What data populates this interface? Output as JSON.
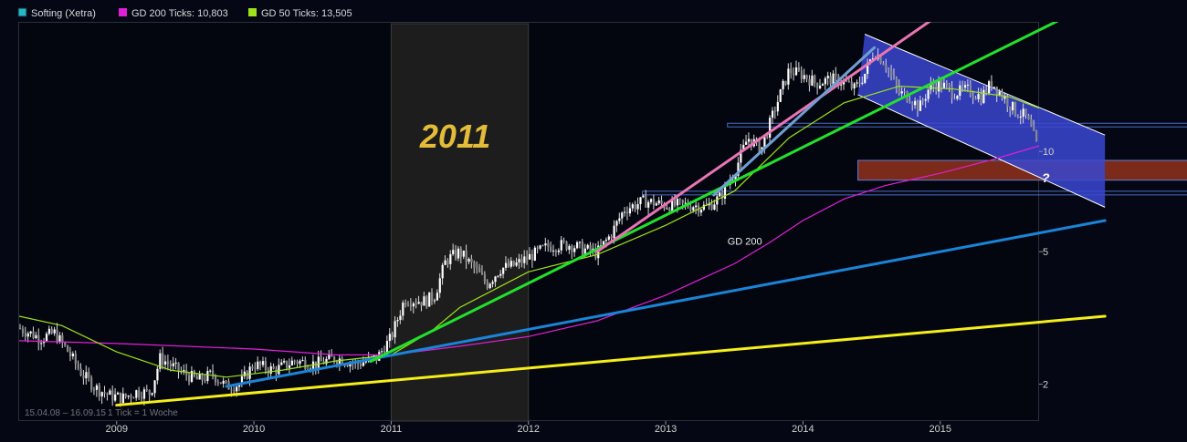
{
  "chart_data": {
    "type": "line",
    "subtype": "candlestick",
    "instrument": "Softing (Xetra)",
    "scale": "log",
    "legend": [
      {
        "name": "Softing (Xetra)",
        "color": "#21b9c6"
      },
      {
        "name": "GD 200 Ticks: 10,803",
        "color": "#e020d8"
      },
      {
        "name": "GD 50 Ticks: 13,505",
        "color": "#9ee21b"
      }
    ],
    "x_ticks": [
      "2009",
      "2010",
      "2011",
      "2012",
      "2013",
      "2014",
      "2015"
    ],
    "y_ticks": [
      {
        "value": 2,
        "label": "2"
      },
      {
        "value": 5,
        "label": "5"
      },
      {
        "value": 10,
        "label": "10"
      }
    ],
    "xlim": [
      2008.29,
      2015.72
    ],
    "ylim": [
      1.55,
      24.5
    ],
    "highlight_period": {
      "from": 2011.0,
      "to": 2012.0,
      "label": "2011"
    },
    "annotations": [
      {
        "text": "GD 200",
        "x": 2013.45,
        "y": 5.25
      },
      {
        "text": "?",
        "x": 2015.72,
        "y": 8.6
      }
    ],
    "footer": {
      "range": "15.04.08 – 16.09.15",
      "unit": "1 Tick = 1 Woche"
    },
    "price_path": [
      [
        2008.29,
        2.95
      ],
      [
        2008.45,
        2.75
      ],
      [
        2008.55,
        2.85
      ],
      [
        2008.65,
        2.5
      ],
      [
        2008.75,
        2.15
      ],
      [
        2008.85,
        1.95
      ],
      [
        2008.95,
        1.85
      ],
      [
        2009.05,
        1.82
      ],
      [
        2009.15,
        1.9
      ],
      [
        2009.25,
        1.88
      ],
      [
        2009.32,
        2.4
      ],
      [
        2009.45,
        2.2
      ],
      [
        2009.6,
        2.05
      ],
      [
        2009.7,
        2.15
      ],
      [
        2009.8,
        1.97
      ],
      [
        2009.9,
        2.0
      ],
      [
        2010.0,
        2.3
      ],
      [
        2010.15,
        2.2
      ],
      [
        2010.3,
        2.35
      ],
      [
        2010.45,
        2.3
      ],
      [
        2010.6,
        2.4
      ],
      [
        2010.75,
        2.3
      ],
      [
        2010.9,
        2.4
      ],
      [
        2011.0,
        2.75
      ],
      [
        2011.1,
        3.6
      ],
      [
        2011.25,
        3.55
      ],
      [
        2011.32,
        3.7
      ],
      [
        2011.4,
        4.7
      ],
      [
        2011.5,
        5.0
      ],
      [
        2011.6,
        4.5
      ],
      [
        2011.7,
        4.0
      ],
      [
        2011.8,
        4.45
      ],
      [
        2011.9,
        4.55
      ],
      [
        2012.0,
        4.8
      ],
      [
        2012.15,
        5.2
      ],
      [
        2012.3,
        5.25
      ],
      [
        2012.5,
        4.95
      ],
      [
        2012.6,
        5.6
      ],
      [
        2012.7,
        6.7
      ],
      [
        2012.85,
        7.1
      ],
      [
        2013.0,
        6.9
      ],
      [
        2013.2,
        6.9
      ],
      [
        2013.3,
        6.8
      ],
      [
        2013.4,
        7.3
      ],
      [
        2013.5,
        8.6
      ],
      [
        2013.6,
        11.0
      ],
      [
        2013.7,
        10.2
      ],
      [
        2013.8,
        13.5
      ],
      [
        2013.9,
        17.5
      ],
      [
        2014.0,
        17.0
      ],
      [
        2014.1,
        16.0
      ],
      [
        2014.2,
        16.5
      ],
      [
        2014.3,
        16.2
      ],
      [
        2014.38,
        15.4
      ],
      [
        2014.45,
        17.0
      ],
      [
        2014.52,
        20.0
      ],
      [
        2014.6,
        18.5
      ],
      [
        2014.7,
        15.0
      ],
      [
        2014.78,
        14.6
      ],
      [
        2014.85,
        13.5
      ],
      [
        2014.92,
        15.5
      ],
      [
        2015.0,
        16.0
      ],
      [
        2015.1,
        15.0
      ],
      [
        2015.2,
        15.3
      ],
      [
        2015.3,
        14.6
      ],
      [
        2015.38,
        16.1
      ],
      [
        2015.45,
        14.8
      ],
      [
        2015.55,
        13.2
      ],
      [
        2015.62,
        12.8
      ],
      [
        2015.66,
        11.8
      ],
      [
        2015.72,
        10.0
      ]
    ],
    "gd200_path": [
      [
        2008.29,
        2.7
      ],
      [
        2009.0,
        2.65
      ],
      [
        2010.0,
        2.55
      ],
      [
        2010.6,
        2.45
      ],
      [
        2011.0,
        2.45
      ],
      [
        2011.5,
        2.6
      ],
      [
        2012.0,
        2.78
      ],
      [
        2012.5,
        3.1
      ],
      [
        2013.0,
        3.7
      ],
      [
        2013.5,
        4.6
      ],
      [
        2013.75,
        5.3
      ],
      [
        2014.0,
        6.2
      ],
      [
        2014.3,
        7.2
      ],
      [
        2014.6,
        7.9
      ],
      [
        2015.0,
        8.6
      ],
      [
        2015.4,
        9.5
      ],
      [
        2015.72,
        10.4
      ]
    ],
    "gd50_path": [
      [
        2008.29,
        3.2
      ],
      [
        2008.6,
        3.0
      ],
      [
        2009.0,
        2.5
      ],
      [
        2009.4,
        2.2
      ],
      [
        2009.8,
        2.1
      ],
      [
        2010.2,
        2.2
      ],
      [
        2010.6,
        2.35
      ],
      [
        2011.0,
        2.45
      ],
      [
        2011.3,
        2.9
      ],
      [
        2011.5,
        3.4
      ],
      [
        2012.0,
        4.35
      ],
      [
        2012.5,
        4.9
      ],
      [
        2013.0,
        6.0
      ],
      [
        2013.5,
        7.6
      ],
      [
        2013.9,
        11.0
      ],
      [
        2014.3,
        14.0
      ],
      [
        2014.7,
        15.7
      ],
      [
        2015.1,
        15.4
      ],
      [
        2015.5,
        14.6
      ],
      [
        2015.72,
        13.5
      ]
    ],
    "trendlines": [
      {
        "name": "yellow-support",
        "color": "#f5ee1b",
        "from": [
          2009.0,
          1.73
        ],
        "to": [
          2016.2,
          3.2
        ]
      },
      {
        "name": "blue-support",
        "color": "#1a84d8",
        "from": [
          2009.8,
          1.97
        ],
        "to": [
          2016.2,
          6.2
        ]
      },
      {
        "name": "green-trend",
        "color": "#22e02c",
        "from": [
          2010.85,
          2.34
        ],
        "to": [
          2016.2,
          29.0
        ]
      },
      {
        "name": "pink-trend",
        "color": "#e874b4",
        "from": [
          2012.5,
          5.0
        ],
        "to": [
          2015.12,
          28.0
        ]
      },
      {
        "name": "steel-trend",
        "color": "#6f9fd0",
        "from": [
          2013.35,
          7.4
        ],
        "to": [
          2014.52,
          20.5
        ]
      }
    ],
    "channel": {
      "color": "#3a46d0",
      "upper": {
        "from": [
          2014.45,
          22.5
        ],
        "to": [
          2016.2,
          11.2
        ]
      },
      "lower": {
        "from": [
          2014.4,
          14.8
        ],
        "to": [
          2016.2,
          6.8
        ]
      }
    },
    "zones": [
      {
        "name": "support-zone",
        "color": "#7c2b1a",
        "from_value": 8.2,
        "to_value": 9.4,
        "x_from": 2014.4
      },
      {
        "name": "resistance-line-upper",
        "color": "#4a6cc8",
        "value": 12.0,
        "x_from": 2013.45
      },
      {
        "name": "resistance-line-lower",
        "color": "#4a6cc8",
        "value": 7.5,
        "x_from": 2012.83
      }
    ]
  }
}
